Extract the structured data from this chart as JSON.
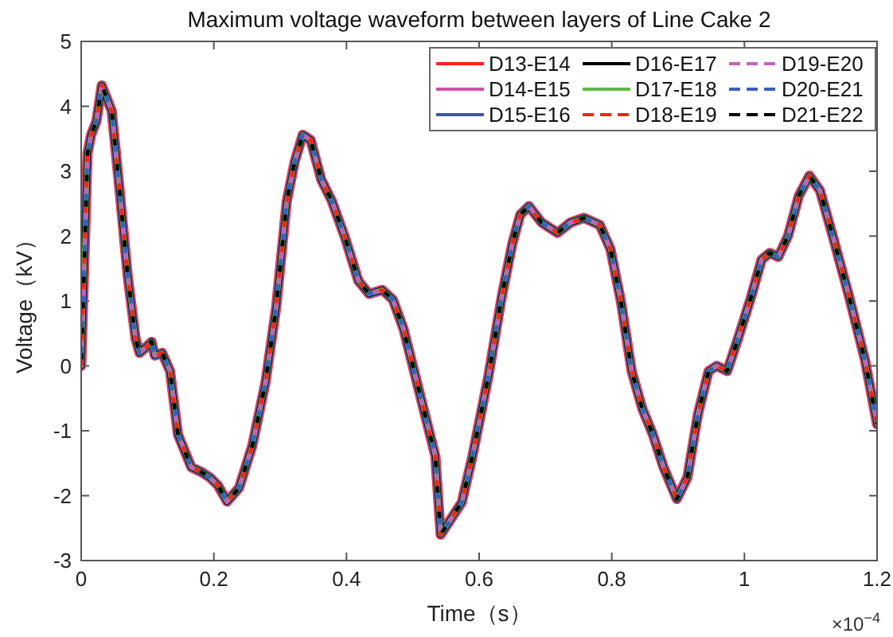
{
  "chart_data": {
    "type": "line",
    "title": "Maximum voltage waveform between layers of Line Cake 2",
    "xlabel": "Time（s）",
    "ylabel": "Voltage（kV）",
    "annotations": [
      "×10$^{−4}$"
    ],
    "x": [
      0,
      0.0096,
      0.015,
      0.023,
      0.031,
      0.046,
      0.058,
      0.07,
      0.082,
      0.088,
      0.098,
      0.106,
      0.111,
      0.122,
      0.134,
      0.146,
      0.166,
      0.182,
      0.194,
      0.206,
      0.22,
      0.238,
      0.258,
      0.278,
      0.294,
      0.31,
      0.322,
      0.334,
      0.346,
      0.362,
      0.378,
      0.398,
      0.418,
      0.434,
      0.454,
      0.47,
      0.486,
      0.51,
      0.534,
      0.542,
      0.574,
      0.59,
      0.614,
      0.634,
      0.65,
      0.662,
      0.675,
      0.694,
      0.718,
      0.738,
      0.758,
      0.782,
      0.798,
      0.814,
      0.83,
      0.846,
      0.862,
      0.878,
      0.898,
      0.914,
      0.93,
      0.946,
      0.958,
      0.974,
      0.99,
      1.01,
      1.026,
      1.038,
      1.051,
      1.066,
      1.082,
      1.098,
      1.114,
      1.134,
      1.158,
      1.182,
      1.2
    ],
    "series": [
      {
        "name": "D13-E14",
        "color": "#ff1f1f",
        "line_style": "solid",
        "values": [
          0,
          3.28,
          3.56,
          3.77,
          4.32,
          3.93,
          2.7,
          1.4,
          0.42,
          0.2,
          0.29,
          0.37,
          0.16,
          0.2,
          -0.08,
          -1.06,
          -1.56,
          -1.64,
          -1.72,
          -1.84,
          -2.09,
          -1.88,
          -1.23,
          -0.25,
          0.9,
          2.54,
          3.15,
          3.56,
          3.48,
          2.87,
          2.54,
          1.97,
          1.31,
          1.11,
          1.17,
          1.02,
          0.57,
          -0.41,
          -1.39,
          -2.6,
          -2.1,
          -1.39,
          -0.16,
          1.06,
          1.88,
          2.33,
          2.46,
          2.21,
          2.05,
          2.21,
          2.28,
          2.17,
          1.8,
          0.98,
          -0.08,
          -0.66,
          -1.06,
          -1.56,
          -2.05,
          -1.72,
          -0.74,
          -0.08,
          0.0,
          -0.08,
          0.41,
          1.06,
          1.64,
          1.74,
          1.68,
          2.01,
          2.62,
          2.93,
          2.7,
          1.97,
          1.06,
          0.08,
          -0.9
        ]
      },
      {
        "name": "D14-E15",
        "color": "#d24ea6",
        "line_style": "solid",
        "values": [
          0,
          3.28,
          3.56,
          3.77,
          4.32,
          3.93,
          2.7,
          1.4,
          0.42,
          0.2,
          0.29,
          0.37,
          0.16,
          0.2,
          -0.08,
          -1.06,
          -1.56,
          -1.64,
          -1.72,
          -1.84,
          -2.09,
          -1.88,
          -1.23,
          -0.25,
          0.9,
          2.54,
          3.15,
          3.56,
          3.48,
          2.87,
          2.54,
          1.97,
          1.31,
          1.11,
          1.17,
          1.02,
          0.57,
          -0.41,
          -1.39,
          -2.6,
          -2.1,
          -1.39,
          -0.16,
          1.06,
          1.88,
          2.33,
          2.46,
          2.21,
          2.05,
          2.21,
          2.28,
          2.17,
          1.8,
          0.98,
          -0.08,
          -0.66,
          -1.06,
          -1.56,
          -2.05,
          -1.72,
          -0.74,
          -0.08,
          0.0,
          -0.08,
          0.41,
          1.06,
          1.64,
          1.74,
          1.68,
          2.01,
          2.62,
          2.93,
          2.7,
          1.97,
          1.06,
          0.08,
          -0.9
        ]
      },
      {
        "name": "D15-E16",
        "color": "#3b56b0",
        "line_style": "solid",
        "values": [
          0,
          3.28,
          3.56,
          3.77,
          4.32,
          3.93,
          2.7,
          1.4,
          0.42,
          0.2,
          0.29,
          0.37,
          0.16,
          0.2,
          -0.08,
          -1.06,
          -1.56,
          -1.64,
          -1.72,
          -1.84,
          -2.09,
          -1.88,
          -1.23,
          -0.25,
          0.9,
          2.54,
          3.15,
          3.56,
          3.48,
          2.87,
          2.54,
          1.97,
          1.31,
          1.11,
          1.17,
          1.02,
          0.57,
          -0.41,
          -1.39,
          -2.6,
          -2.1,
          -1.39,
          -0.16,
          1.06,
          1.88,
          2.33,
          2.46,
          2.21,
          2.05,
          2.21,
          2.28,
          2.17,
          1.8,
          0.98,
          -0.08,
          -0.66,
          -1.06,
          -1.56,
          -2.05,
          -1.72,
          -0.74,
          -0.08,
          0.0,
          -0.08,
          0.41,
          1.06,
          1.64,
          1.74,
          1.68,
          2.01,
          2.62,
          2.93,
          2.7,
          1.97,
          1.06,
          0.08,
          -0.9
        ]
      },
      {
        "name": "D16-E17",
        "color": "#000000",
        "line_style": "solid",
        "values": [
          0,
          3.28,
          3.56,
          3.77,
          4.32,
          3.93,
          2.7,
          1.4,
          0.42,
          0.2,
          0.29,
          0.37,
          0.16,
          0.2,
          -0.08,
          -1.06,
          -1.56,
          -1.64,
          -1.72,
          -1.84,
          -2.09,
          -1.88,
          -1.23,
          -0.25,
          0.9,
          2.54,
          3.15,
          3.56,
          3.48,
          2.87,
          2.54,
          1.97,
          1.31,
          1.11,
          1.17,
          1.02,
          0.57,
          -0.41,
          -1.39,
          -2.6,
          -2.1,
          -1.39,
          -0.16,
          1.06,
          1.88,
          2.33,
          2.46,
          2.21,
          2.05,
          2.21,
          2.28,
          2.17,
          1.8,
          0.98,
          -0.08,
          -0.66,
          -1.06,
          -1.56,
          -2.05,
          -1.72,
          -0.74,
          -0.08,
          0.0,
          -0.08,
          0.41,
          1.06,
          1.64,
          1.74,
          1.68,
          2.01,
          2.62,
          2.93,
          2.7,
          1.97,
          1.06,
          0.08,
          -0.9
        ]
      },
      {
        "name": "D17-E18",
        "color": "#5dbb3c",
        "line_style": "solid",
        "values": [
          0,
          3.28,
          3.56,
          3.77,
          4.32,
          3.93,
          2.7,
          1.4,
          0.42,
          0.2,
          0.29,
          0.37,
          0.16,
          0.2,
          -0.08,
          -1.06,
          -1.56,
          -1.64,
          -1.72,
          -1.84,
          -2.09,
          -1.88,
          -1.23,
          -0.25,
          0.9,
          2.54,
          3.15,
          3.56,
          3.48,
          2.87,
          2.54,
          1.97,
          1.31,
          1.11,
          1.17,
          1.02,
          0.57,
          -0.41,
          -1.39,
          -2.6,
          -2.1,
          -1.39,
          -0.16,
          1.06,
          1.88,
          2.33,
          2.46,
          2.21,
          2.05,
          2.21,
          2.28,
          2.17,
          1.8,
          0.98,
          -0.08,
          -0.66,
          -1.06,
          -1.56,
          -2.05,
          -1.72,
          -0.74,
          -0.08,
          0.0,
          -0.08,
          0.41,
          1.06,
          1.64,
          1.74,
          1.68,
          2.01,
          2.62,
          2.93,
          2.7,
          1.97,
          1.06,
          0.08,
          -0.9
        ]
      },
      {
        "name": "D18-E19",
        "color": "#ff1f1f",
        "line_style": "dashed",
        "values": [
          0,
          3.28,
          3.56,
          3.77,
          4.32,
          3.93,
          2.7,
          1.4,
          0.42,
          0.2,
          0.29,
          0.37,
          0.16,
          0.2,
          -0.08,
          -1.06,
          -1.56,
          -1.64,
          -1.72,
          -1.84,
          -2.09,
          -1.88,
          -1.23,
          -0.25,
          0.9,
          2.54,
          3.15,
          3.56,
          3.48,
          2.87,
          2.54,
          1.97,
          1.31,
          1.11,
          1.17,
          1.02,
          0.57,
          -0.41,
          -1.39,
          -2.6,
          -2.1,
          -1.39,
          -0.16,
          1.06,
          1.88,
          2.33,
          2.46,
          2.21,
          2.05,
          2.21,
          2.28,
          2.17,
          1.8,
          0.98,
          -0.08,
          -0.66,
          -1.06,
          -1.56,
          -2.05,
          -1.72,
          -0.74,
          -0.08,
          0.0,
          -0.08,
          0.41,
          1.06,
          1.64,
          1.74,
          1.68,
          2.01,
          2.62,
          2.93,
          2.7,
          1.97,
          1.06,
          0.08,
          -0.9
        ]
      },
      {
        "name": "D19-E20",
        "color": "#c55fc0",
        "line_style": "dashed",
        "values": [
          0,
          3.28,
          3.56,
          3.77,
          4.32,
          3.93,
          2.7,
          1.4,
          0.42,
          0.2,
          0.29,
          0.37,
          0.16,
          0.2,
          -0.08,
          -1.06,
          -1.56,
          -1.64,
          -1.72,
          -1.84,
          -2.09,
          -1.88,
          -1.23,
          -0.25,
          0.9,
          2.54,
          3.15,
          3.56,
          3.48,
          2.87,
          2.54,
          1.97,
          1.31,
          1.11,
          1.17,
          1.02,
          0.57,
          -0.41,
          -1.39,
          -2.6,
          -2.1,
          -1.39,
          -0.16,
          1.06,
          1.88,
          2.33,
          2.46,
          2.21,
          2.05,
          2.21,
          2.28,
          2.17,
          1.8,
          0.98,
          -0.08,
          -0.66,
          -1.06,
          -1.56,
          -2.05,
          -1.72,
          -0.74,
          -0.08,
          0.0,
          -0.08,
          0.41,
          1.06,
          1.64,
          1.74,
          1.68,
          2.01,
          2.62,
          2.93,
          2.7,
          1.97,
          1.06,
          0.08,
          -0.9
        ]
      },
      {
        "name": "D20-E21",
        "color": "#3b5cc4",
        "line_style": "dashed",
        "values": [
          0,
          3.28,
          3.56,
          3.77,
          4.32,
          3.93,
          2.7,
          1.4,
          0.42,
          0.2,
          0.29,
          0.37,
          0.16,
          0.2,
          -0.08,
          -1.06,
          -1.56,
          -1.64,
          -1.72,
          -1.84,
          -2.09,
          -1.88,
          -1.23,
          -0.25,
          0.9,
          2.54,
          3.15,
          3.56,
          3.48,
          2.87,
          2.54,
          1.97,
          1.31,
          1.11,
          1.17,
          1.02,
          0.57,
          -0.41,
          -1.39,
          -2.6,
          -2.1,
          -1.39,
          -0.16,
          1.06,
          1.88,
          2.33,
          2.46,
          2.21,
          2.05,
          2.21,
          2.28,
          2.17,
          1.8,
          0.98,
          -0.08,
          -0.66,
          -1.06,
          -1.56,
          -2.05,
          -1.72,
          -0.74,
          -0.08,
          0.0,
          -0.08,
          0.41,
          1.06,
          1.64,
          1.74,
          1.68,
          2.01,
          2.62,
          2.93,
          2.7,
          1.97,
          1.06,
          0.08,
          -0.9
        ]
      },
      {
        "name": "D21-E22",
        "color": "#000000",
        "line_style": "dashed",
        "values": [
          0,
          3.28,
          3.56,
          3.77,
          4.32,
          3.93,
          2.7,
          1.4,
          0.42,
          0.2,
          0.29,
          0.37,
          0.16,
          0.2,
          -0.08,
          -1.06,
          -1.56,
          -1.64,
          -1.72,
          -1.84,
          -2.09,
          -1.88,
          -1.23,
          -0.25,
          0.9,
          2.54,
          3.15,
          3.56,
          3.48,
          2.87,
          2.54,
          1.97,
          1.31,
          1.11,
          1.17,
          1.02,
          0.57,
          -0.41,
          -1.39,
          -2.6,
          -2.1,
          -1.39,
          -0.16,
          1.06,
          1.88,
          2.33,
          2.46,
          2.21,
          2.05,
          2.21,
          2.28,
          2.17,
          1.8,
          0.98,
          -0.08,
          -0.66,
          -1.06,
          -1.56,
          -2.05,
          -1.72,
          -0.74,
          -0.08,
          0.0,
          -0.08,
          0.41,
          1.06,
          1.64,
          1.74,
          1.68,
          2.01,
          2.62,
          2.93,
          2.7,
          1.97,
          1.06,
          0.08,
          -0.9
        ]
      }
    ],
    "xlim": [
      0,
      1.2
    ],
    "xticks": [
      0,
      0.2,
      0.4,
      0.6,
      0.8,
      1,
      1.2
    ],
    "ylim": [
      -3,
      5
    ],
    "yticks": [
      -3,
      -2,
      -1,
      0,
      1,
      2,
      3,
      4,
      5
    ],
    "grid": false,
    "legend": "top right",
    "marker": "none"
  }
}
